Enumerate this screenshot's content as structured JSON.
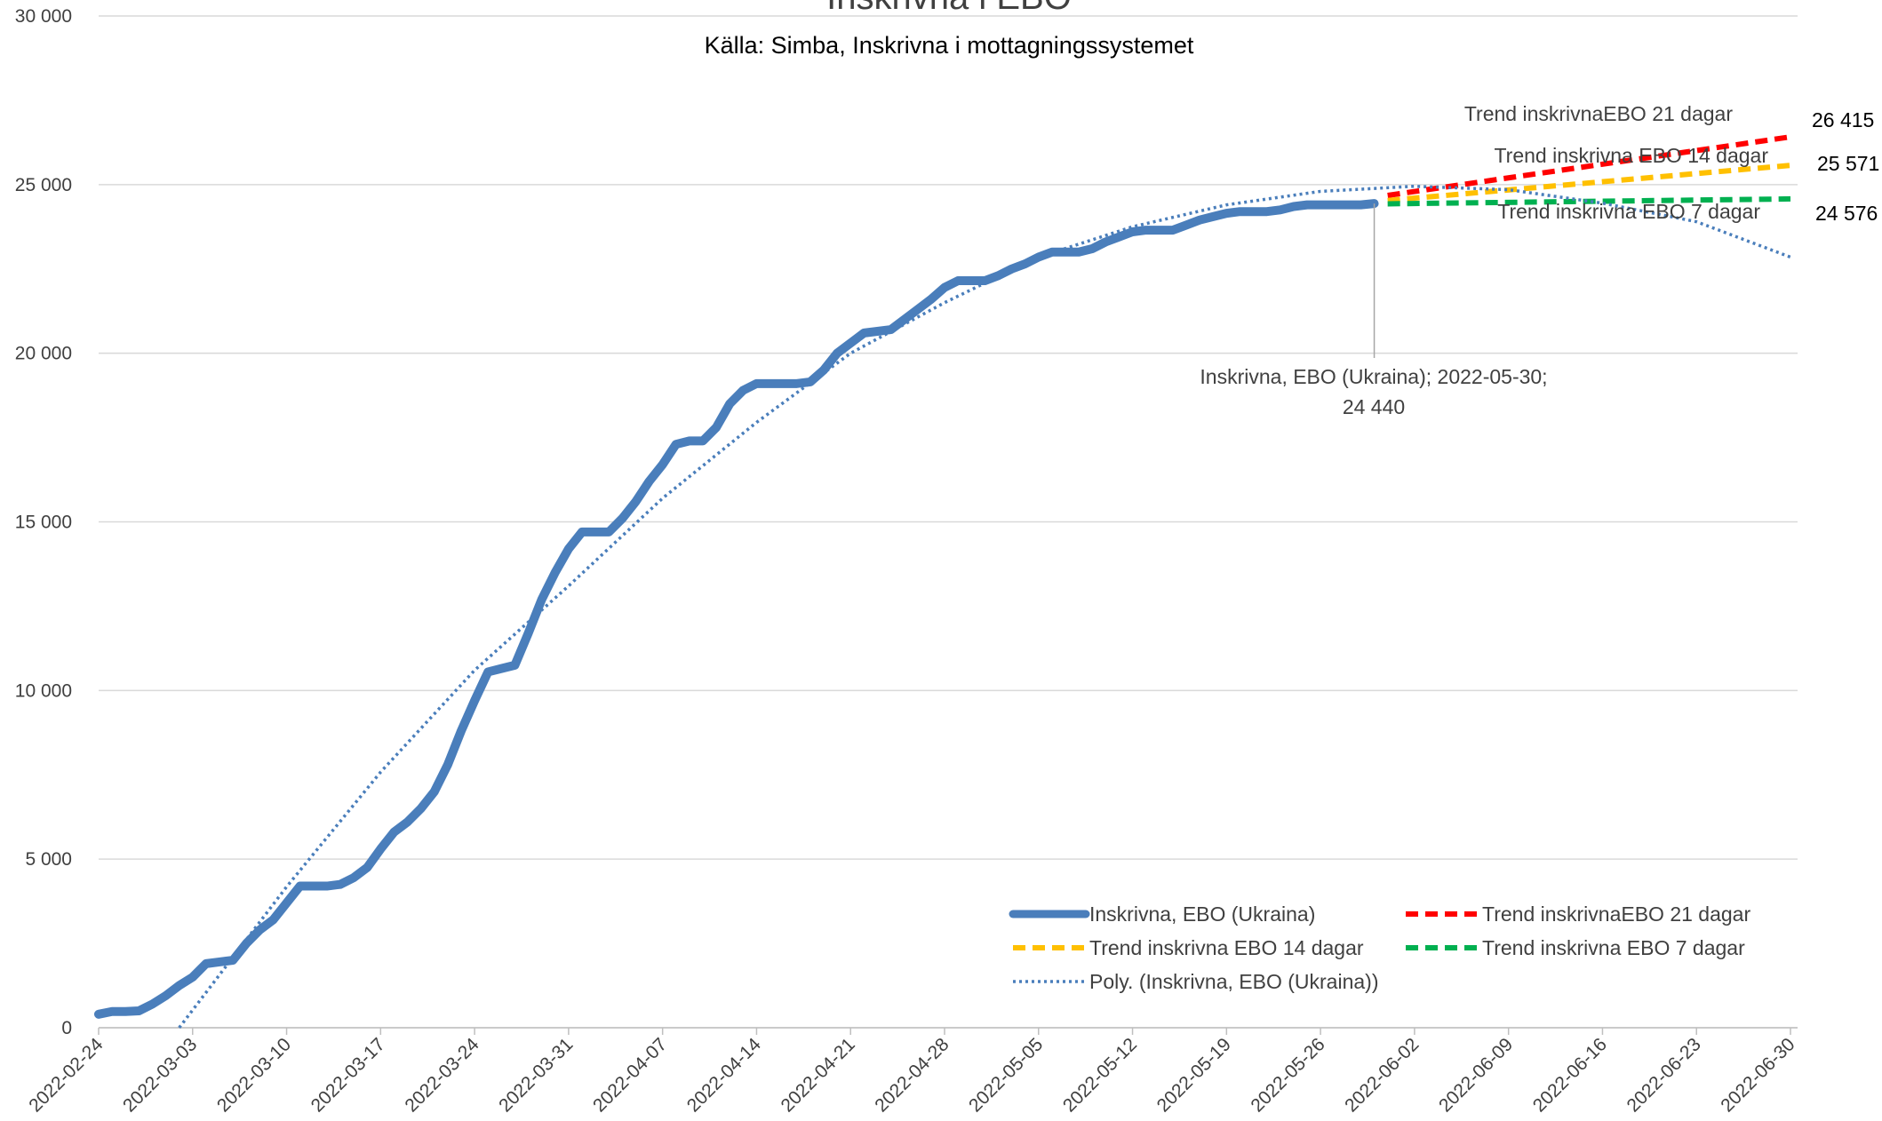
{
  "chart_data": {
    "type": "line",
    "title": "Inskrivna i EBO",
    "subtitle": "Källa: Simba, Inskrivna i mottagningssystemet",
    "xlim": [
      "2022-02-24",
      "2022-06-30"
    ],
    "xticks": [
      "2022-02-24",
      "2022-03-03",
      "2022-03-10",
      "2022-03-17",
      "2022-03-24",
      "2022-03-31",
      "2022-04-07",
      "2022-04-14",
      "2022-04-21",
      "2022-04-28",
      "2022-05-05",
      "2022-05-12",
      "2022-05-19",
      "2022-05-26",
      "2022-06-02",
      "2022-06-09",
      "2022-06-16",
      "2022-06-23",
      "2022-06-30"
    ],
    "ylim": [
      0,
      30000
    ],
    "yticks": [
      0,
      {
        "value": 5000,
        "label": "5 000"
      },
      {
        "value": 10000,
        "label": "10 000"
      },
      {
        "value": 15000,
        "label": "15 000"
      },
      {
        "value": 20000,
        "label": "20 000"
      },
      {
        "value": 25000,
        "label": "25 000"
      },
      {
        "value": 30000,
        "label": "30 000"
      }
    ],
    "grid": true,
    "legend": "bottom-right",
    "series": [
      {
        "name": "Inskrivna, EBO (Ukraina)",
        "color": "#4a7ebb",
        "line_style": "solid",
        "x": [
          "2022-02-24",
          "2022-02-25",
          "2022-02-26",
          "2022-02-27",
          "2022-02-28",
          "2022-03-01",
          "2022-03-02",
          "2022-03-03",
          "2022-03-04",
          "2022-03-05",
          "2022-03-06",
          "2022-03-07",
          "2022-03-08",
          "2022-03-09",
          "2022-03-10",
          "2022-03-11",
          "2022-03-12",
          "2022-03-13",
          "2022-03-14",
          "2022-03-15",
          "2022-03-16",
          "2022-03-17",
          "2022-03-18",
          "2022-03-19",
          "2022-03-20",
          "2022-03-21",
          "2022-03-22",
          "2022-03-23",
          "2022-03-24",
          "2022-03-25",
          "2022-03-26",
          "2022-03-27",
          "2022-03-28",
          "2022-03-29",
          "2022-03-30",
          "2022-03-31",
          "2022-04-01",
          "2022-04-02",
          "2022-04-03",
          "2022-04-04",
          "2022-04-05",
          "2022-04-06",
          "2022-04-07",
          "2022-04-08",
          "2022-04-09",
          "2022-04-10",
          "2022-04-11",
          "2022-04-12",
          "2022-04-13",
          "2022-04-14",
          "2022-04-15",
          "2022-04-16",
          "2022-04-17",
          "2022-04-18",
          "2022-04-19",
          "2022-04-20",
          "2022-04-21",
          "2022-04-22",
          "2022-04-23",
          "2022-04-24",
          "2022-04-25",
          "2022-04-26",
          "2022-04-27",
          "2022-04-28",
          "2022-04-29",
          "2022-04-30",
          "2022-05-01",
          "2022-05-02",
          "2022-05-03",
          "2022-05-04",
          "2022-05-05",
          "2022-05-06",
          "2022-05-07",
          "2022-05-08",
          "2022-05-09",
          "2022-05-10",
          "2022-05-11",
          "2022-05-12",
          "2022-05-13",
          "2022-05-14",
          "2022-05-15",
          "2022-05-16",
          "2022-05-17",
          "2022-05-18",
          "2022-05-19",
          "2022-05-20",
          "2022-05-21",
          "2022-05-22",
          "2022-05-23",
          "2022-05-24",
          "2022-05-25",
          "2022-05-26",
          "2022-05-27",
          "2022-05-28",
          "2022-05-29",
          "2022-05-30"
        ],
        "values": [
          400,
          480,
          480,
          500,
          700,
          950,
          1250,
          1500,
          1900,
          1950,
          2000,
          2500,
          2900,
          3200,
          3700,
          4200,
          4200,
          4200,
          4250,
          4450,
          4750,
          5300,
          5800,
          6100,
          6500,
          7000,
          7800,
          8800,
          9700,
          10550,
          10650,
          10750,
          11700,
          12700,
          13500,
          14200,
          14700,
          14700,
          14700,
          15100,
          15600,
          16200,
          16700,
          17300,
          17400,
          17400,
          17800,
          18500,
          18900,
          19100,
          19100,
          19100,
          19100,
          19150,
          19500,
          20000,
          20300,
          20600,
          20650,
          20700,
          21000,
          21300,
          21600,
          21950,
          22150,
          22150,
          22150,
          22300,
          22500,
          22650,
          22850,
          23000,
          23000,
          23000,
          23100,
          23300,
          23450,
          23600,
          23650,
          23650,
          23650,
          23800,
          23950,
          24050,
          24150,
          24200,
          24200,
          24200,
          24250,
          24350,
          24400,
          24400,
          24400,
          24400,
          24400,
          24440
        ]
      },
      {
        "name": "Trend inskrivnaEBO 21 dagar",
        "color": "#ff0000",
        "line_style": "dashed",
        "x": [
          "2022-05-31",
          "2022-06-30"
        ],
        "values": [
          24680,
          26415
        ],
        "value_labels": [
          null,
          "26 415"
        ]
      },
      {
        "name": "Trend inskrivna EBO 14 dagar",
        "color": "#ffc000",
        "line_style": "dashed",
        "x": [
          "2022-05-31",
          "2022-06-30"
        ],
        "values": [
          24530,
          25571
        ],
        "value_labels": [
          null,
          "25 571"
        ]
      },
      {
        "name": "Trend inskrivna EBO 7 dagar",
        "color": "#00b050",
        "line_style": "dashed",
        "x": [
          "2022-05-31",
          "2022-06-30"
        ],
        "values": [
          24430,
          24576
        ],
        "value_labels": [
          null,
          "24 576"
        ]
      },
      {
        "name": "Poly. (Inskrivna, EBO (Ukraina))",
        "color": "#4a7ebb",
        "line_style": "dotted",
        "x": [
          "2022-03-02",
          "2022-03-10",
          "2022-03-17",
          "2022-03-24",
          "2022-03-31",
          "2022-04-07",
          "2022-04-14",
          "2022-04-21",
          "2022-04-28",
          "2022-05-05",
          "2022-05-12",
          "2022-05-19",
          "2022-05-26",
          "2022-06-02",
          "2022-06-09",
          "2022-06-16",
          "2022-06-23",
          "2022-06-30"
        ],
        "values": [
          0,
          4180,
          7580,
          10600,
          13100,
          15700,
          17950,
          20000,
          21500,
          22850,
          23750,
          24400,
          24800,
          24950,
          24850,
          24450,
          23900,
          22850
        ]
      }
    ],
    "annotation": {
      "text": [
        "Inskrivna, EBO (Ukraina); 2022-05-30;",
        "24 440"
      ]
    }
  }
}
